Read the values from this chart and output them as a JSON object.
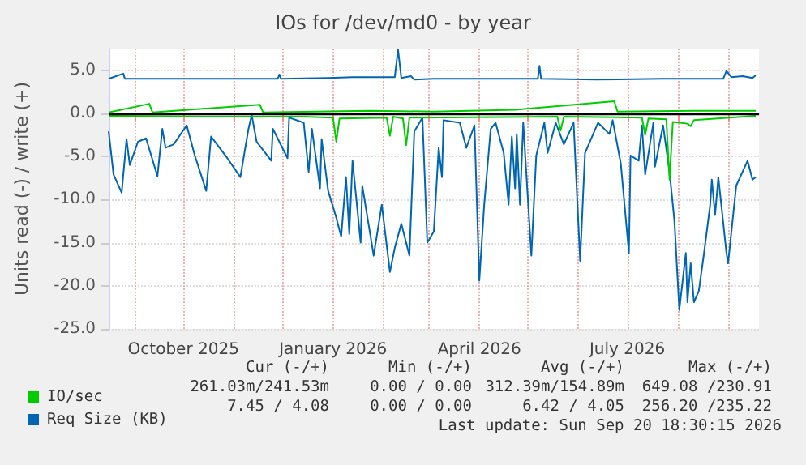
{
  "chart_data": {
    "type": "line",
    "title": "IOs for /dev/md0 - by year",
    "ylabel": "Units read (-) / write (+)",
    "xlim": [
      "2025-08-16",
      "2026-09-20"
    ],
    "xticks": [
      {
        "value": "2025-09-01",
        "label": null
      },
      {
        "value": "2025-10-01",
        "label": "October 2025"
      },
      {
        "value": "2025-11-01",
        "label": null
      },
      {
        "value": "2025-12-01",
        "label": null
      },
      {
        "value": "2026-01-01",
        "label": "January 2026"
      },
      {
        "value": "2026-02-01",
        "label": null
      },
      {
        "value": "2026-03-01",
        "label": null
      },
      {
        "value": "2026-04-01",
        "label": "April 2026"
      },
      {
        "value": "2026-05-01",
        "label": null
      },
      {
        "value": "2026-06-01",
        "label": null
      },
      {
        "value": "2026-07-01",
        "label": "July 2026"
      },
      {
        "value": "2026-08-01",
        "label": null
      },
      {
        "value": "2026-09-01",
        "label": null
      }
    ],
    "ylim": [
      -25,
      7.5
    ],
    "yticks": [
      {
        "value": -25,
        "label": "-25.0"
      },
      {
        "value": -20,
        "label": "-20.0"
      },
      {
        "value": -15,
        "label": "-15.0"
      },
      {
        "value": -10,
        "label": "-10.0"
      },
      {
        "value": -5,
        "label": "-5.0"
      },
      {
        "value": 0,
        "label": "0.0"
      },
      {
        "value": 5,
        "label": "5.0"
      }
    ],
    "grid": true,
    "legend": "bottom left",
    "marker": "none",
    "line_style": "solid",
    "ref_lines": [
      {
        "axis": "y",
        "value": 0,
        "color": "#000000"
      }
    ],
    "series": [
      {
        "name": "Req Size (KB)",
        "color": "#0066b3",
        "x": [
          "2025-08-16",
          "2025-08-19",
          "2025-08-24",
          "2025-08-27",
          "2025-08-29",
          "2025-09-03",
          "2025-09-08",
          "2025-09-15",
          "2025-09-18",
          "2025-09-20",
          "2025-09-25",
          "2025-10-03",
          "2025-10-08",
          "2025-10-15",
          "2025-10-18",
          "2025-10-28",
          "2025-11-05",
          "2025-11-10",
          "2025-11-12",
          "2025-11-15",
          "2025-11-24",
          "2025-11-25",
          "2025-12-04",
          "2025-12-05",
          "2025-12-14",
          "2025-12-17",
          "2025-12-19",
          "2025-12-24",
          "2025-12-25",
          "2025-12-29",
          "2026-01-03",
          "2026-01-06",
          "2026-01-09",
          "2026-01-11",
          "2026-01-13",
          "2026-01-18",
          "2026-01-19",
          "2026-01-26",
          "2026-01-31",
          "2026-02-05",
          "2026-02-08",
          "2026-02-12",
          "2026-02-17",
          "2026-02-20",
          "2026-02-25",
          "2026-02-28",
          "2026-03-04",
          "2026-03-07",
          "2026-03-09",
          "2026-03-10",
          "2026-03-20",
          "2026-03-24",
          "2026-03-29",
          "2026-04-01",
          "2026-04-04",
          "2026-04-08",
          "2026-04-11",
          "2026-04-16",
          "2026-04-19",
          "2026-04-21",
          "2026-04-23",
          "2026-04-24",
          "2026-04-26",
          "2026-04-28",
          "2026-05-03",
          "2026-05-06",
          "2026-05-11",
          "2026-05-13",
          "2026-05-18",
          "2026-05-23",
          "2026-05-29",
          "2026-06-02",
          "2026-06-05",
          "2026-06-13",
          "2026-06-20",
          "2026-06-22",
          "2026-06-27",
          "2026-07-02",
          "2026-07-03",
          "2026-07-08",
          "2026-07-10",
          "2026-07-12",
          "2026-07-17",
          "2026-07-18",
          "2026-07-23",
          "2026-07-27",
          "2026-07-30",
          "2026-08-02",
          "2026-08-06",
          "2026-08-07",
          "2026-08-09",
          "2026-08-11",
          "2026-08-14",
          "2026-08-17",
          "2026-08-21",
          "2026-08-22",
          "2026-08-24",
          "2026-08-26",
          "2026-08-31",
          "2026-09-01",
          "2026-09-06",
          "2026-09-13",
          "2026-09-16",
          "2026-09-18"
        ],
        "values": [
          -2.1,
          -7.1,
          -9.2,
          -3.0,
          -6.0,
          -3.3,
          -2.9,
          -7.3,
          -1.8,
          -4.0,
          -3.6,
          -1.4,
          -4.9,
          -9.0,
          -2.7,
          -5.2,
          -7.4,
          -1.8,
          -0.2,
          -3.3,
          -5.5,
          -1.8,
          -5.2,
          -0.5,
          -1.1,
          -6.8,
          -1.8,
          -8.7,
          -3.0,
          -9.0,
          -12.1,
          -14.3,
          -7.4,
          -14.0,
          -5.5,
          -15.0,
          -8.4,
          -16.5,
          -10.6,
          -18.4,
          -15.6,
          -12.8,
          -16.5,
          -2.1,
          -0.5,
          -15.0,
          -13.7,
          -4.0,
          -7.4,
          -0.8,
          -1.1,
          -4.0,
          -1.4,
          -19.4,
          -10.6,
          -1.8,
          -1.1,
          -4.6,
          -10.6,
          -2.7,
          -8.7,
          -2.4,
          -10.6,
          -1.1,
          -16.5,
          -4.9,
          -1.1,
          -4.6,
          -1.1,
          -3.6,
          -1.1,
          -17.1,
          -4.6,
          -1.1,
          -2.4,
          -0.8,
          -5.8,
          -16.2,
          -4.9,
          -5.5,
          -1.4,
          -7.1,
          -1.1,
          -6.2,
          -1.4,
          -6.8,
          -12.5,
          -22.8,
          -16.2,
          -21.9,
          -17.4,
          -21.9,
          -20.6,
          -16.5,
          -10.6,
          -7.7,
          -11.8,
          -7.4,
          -16.2,
          -17.4,
          -8.4,
          -5.5,
          -7.7,
          -7.4
        ]
      },
      {
        "color": "#0066b3",
        "x": [
          "2025-08-16",
          "2025-08-25",
          "2025-08-26",
          "2025-10-15",
          "2025-11-28",
          "2025-11-29",
          "2025-11-30",
          "2025-12-29",
          "2026-01-13",
          "2026-02-08",
          "2026-02-10",
          "2026-02-12",
          "2026-02-18",
          "2026-02-20",
          "2026-03-04",
          "2026-05-07",
          "2026-05-08",
          "2026-05-09",
          "2026-06-12",
          "2026-07-22",
          "2026-08-29",
          "2026-08-31",
          "2026-09-03",
          "2026-09-10",
          "2026-09-16",
          "2026-09-18"
        ],
        "values": [
          4.0,
          4.6,
          4.0,
          4.0,
          4.0,
          4.5,
          4.0,
          4.1,
          4.2,
          4.2,
          7.4,
          4.1,
          4.3,
          3.9,
          4.0,
          4.0,
          5.5,
          4.0,
          3.9,
          4.0,
          4.0,
          4.9,
          4.2,
          4.3,
          4.1,
          4.4
        ]
      },
      {
        "name": "IO/sec",
        "color": "#00cc00",
        "x": [
          "2025-08-16",
          "2025-10-15",
          "2025-12-14",
          "2026-01-01",
          "2026-01-03",
          "2026-01-05",
          "2026-02-03",
          "2026-02-05",
          "2026-02-07",
          "2026-02-13",
          "2026-02-15",
          "2026-02-17",
          "2026-05-19",
          "2026-05-21",
          "2026-05-23",
          "2026-07-10",
          "2026-07-12",
          "2026-07-14",
          "2026-07-25",
          "2026-07-27",
          "2026-07-29",
          "2026-08-07",
          "2026-08-09",
          "2026-08-11",
          "2026-09-18"
        ],
        "values": [
          -0.3,
          -0.4,
          -0.4,
          -0.5,
          -3.3,
          -0.6,
          -0.5,
          -2.6,
          -0.4,
          -0.6,
          -3.7,
          -0.5,
          -0.4,
          -2.0,
          -0.4,
          -0.5,
          -2.5,
          -0.6,
          -0.7,
          -7.7,
          -1.0,
          -1.2,
          -1.5,
          -0.8,
          -0.3
        ]
      },
      {
        "color": "#00cc00",
        "x": [
          "2025-08-16",
          "2025-09-10",
          "2025-09-12",
          "2025-11-17",
          "2025-11-19",
          "2026-01-23",
          "2026-03-04",
          "2026-04-23",
          "2026-06-23",
          "2026-06-25",
          "2026-08-11",
          "2026-09-18"
        ],
        "values": [
          0.1,
          1.1,
          0.1,
          1.0,
          0.1,
          0.3,
          0.2,
          0.4,
          1.4,
          0.2,
          0.3,
          0.3
        ]
      }
    ],
    "annotations": [
      "Cur (-/+)",
      "Min (-/+)",
      "Avg (-/+)",
      "Max (-/+)",
      "261.03m/241.53m",
      "0.00 / 0.00",
      "312.39m/154.89m",
      "649.08 /230.91",
      "7.45 / 4.08",
      "0.00 / 0.00",
      "6.42 / 4.05",
      "256.20 /235.22",
      "Last update: Sun Sep 20 18:30:15 2026"
    ]
  }
}
